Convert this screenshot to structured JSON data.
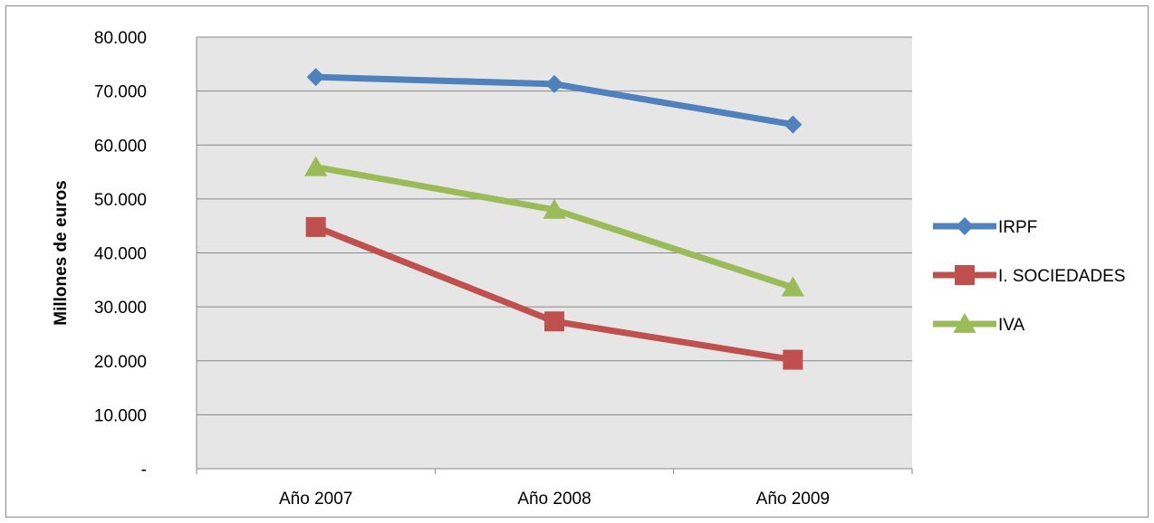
{
  "chart_data": {
    "type": "line",
    "title": "",
    "xlabel": "",
    "ylabel": "Millones de euros",
    "categories": [
      "Año 2007",
      "Año 2008",
      "Año 2009"
    ],
    "ylim": [
      0,
      80000
    ],
    "y_ticks": [
      0,
      10000,
      20000,
      30000,
      40000,
      50000,
      60000,
      70000,
      80000
    ],
    "y_tick_labels": [
      "-",
      "10.000",
      "20.000",
      "30.000",
      "40.000",
      "50.000",
      "60.000",
      "70.000",
      "80.000"
    ],
    "grid": true,
    "plot_background": "#e6e6e6",
    "legend_position": "right",
    "series": [
      {
        "name": "IRPF",
        "values": [
          72600,
          71300,
          63800
        ],
        "color": "#4f81bd",
        "marker": "diamond"
      },
      {
        "name": "I. SOCIEDADES",
        "values": [
          44800,
          27300,
          20200
        ],
        "color": "#c0504d",
        "marker": "square"
      },
      {
        "name": "IVA",
        "values": [
          55900,
          48000,
          33600
        ],
        "color": "#9bbb59",
        "marker": "triangle"
      }
    ]
  }
}
